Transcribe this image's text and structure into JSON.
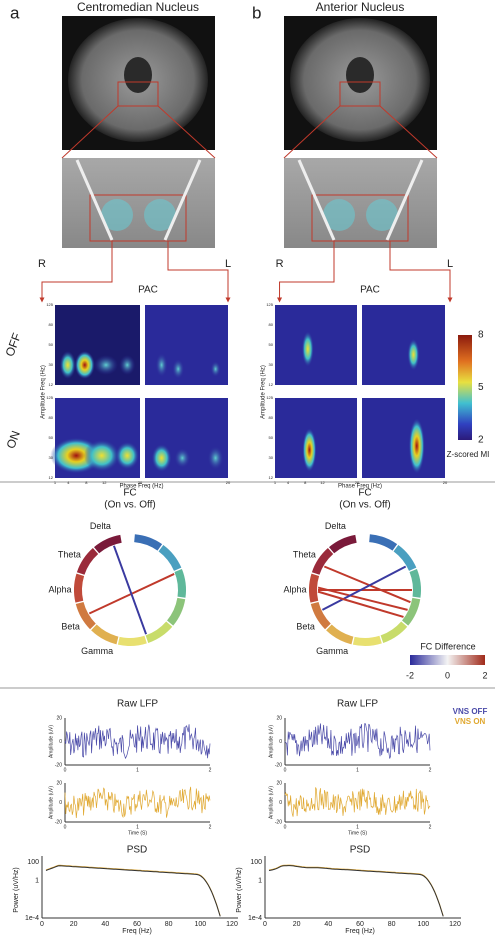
{
  "panels": [
    {
      "letter": "a",
      "title": "Centromedian Nucleus",
      "right": "R",
      "left": "L",
      "pac_title": "PAC",
      "fc_title": [
        "FC",
        "(On vs. Off)"
      ],
      "bands": [
        "Delta",
        "Theta",
        "Alpha",
        "Beta",
        "Gamma"
      ],
      "lfp_title": "Raw LFP",
      "psd_title": "PSD"
    },
    {
      "letter": "b",
      "title": "Anterior Nucleus",
      "right": "R",
      "left": "L",
      "pac_title": "PAC",
      "fc_title": [
        "FC",
        "(On vs. Off)"
      ],
      "bands": [
        "Delta",
        "Theta",
        "Alpha",
        "Beta",
        "Gamma"
      ],
      "lfp_title": "Raw LFP",
      "psd_title": "PSD"
    }
  ],
  "pac": {
    "rows": [
      "OFF",
      "ON"
    ],
    "ylabel": "Amplitude Freq (Hz)",
    "xlabel": "Phase Freq (Hz)",
    "yticks": [
      125,
      80,
      50,
      30,
      12
    ],
    "xticks": [
      1,
      4,
      8,
      12,
      20
    ]
  },
  "colorbar": {
    "ticks": [
      8,
      5,
      2
    ],
    "label": "Z-scored MI"
  },
  "fc_legend": {
    "title": "FC Difference",
    "ticks": [
      -2,
      0,
      2
    ]
  },
  "lfp": {
    "ylabel": "Amplitude (uV)",
    "yticks": [
      20,
      0,
      -20
    ],
    "xticks": [
      0,
      1,
      2
    ],
    "xlabel": "Time (S)",
    "legend": [
      "VNS OFF",
      "VNS ON"
    ]
  },
  "psd": {
    "ylabel": "Power (uV/Hz)",
    "yticks": [
      100,
      1,
      {
        "value": 0.0001,
        "label": "1e-4"
      }
    ],
    "xticks": [
      0,
      20,
      40,
      60,
      80,
      100,
      120
    ],
    "xlabel": "Freq (Hz)"
  }
}
